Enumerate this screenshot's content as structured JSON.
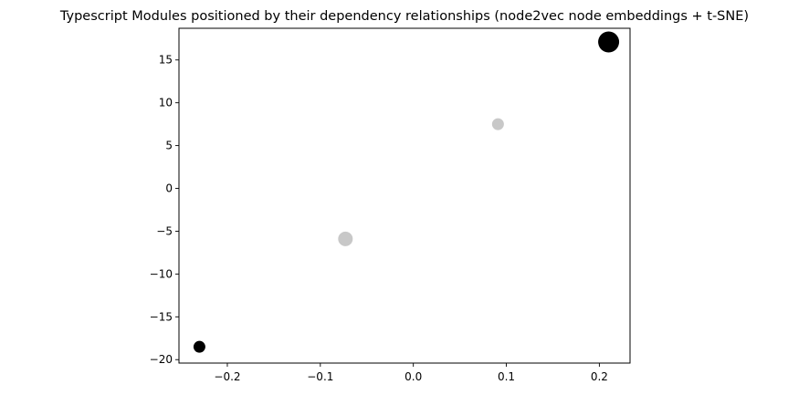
{
  "chart_data": {
    "type": "scatter",
    "title": "Typescript Modules positioned by their dependency relationships (node2vec node embeddings + t-SNE)",
    "xlabel": "",
    "ylabel": "",
    "xlim": [
      -0.252,
      0.233
    ],
    "ylim": [
      -20.4,
      18.7
    ],
    "x_ticks": [
      -0.2,
      -0.1,
      0.0,
      0.1,
      0.2
    ],
    "x_tick_labels": [
      "−0.2",
      "−0.1",
      "0.0",
      "0.1",
      "0.2"
    ],
    "y_ticks": [
      -20,
      -15,
      -10,
      -5,
      0,
      5,
      10,
      15
    ],
    "y_tick_labels": [
      "−20",
      "−15",
      "−10",
      "−5",
      "0",
      "5",
      "10",
      "15"
    ],
    "grid": false,
    "points": [
      {
        "x": 0.21,
        "y": 17.1,
        "color": "#000000",
        "size": "large"
      },
      {
        "x": 0.091,
        "y": 7.5,
        "color": "#c8c8c8",
        "size": "small"
      },
      {
        "x": -0.073,
        "y": -5.9,
        "color": "#c8c8c8",
        "size": "medium"
      },
      {
        "x": -0.23,
        "y": -18.5,
        "color": "#000000",
        "size": "small"
      }
    ]
  }
}
